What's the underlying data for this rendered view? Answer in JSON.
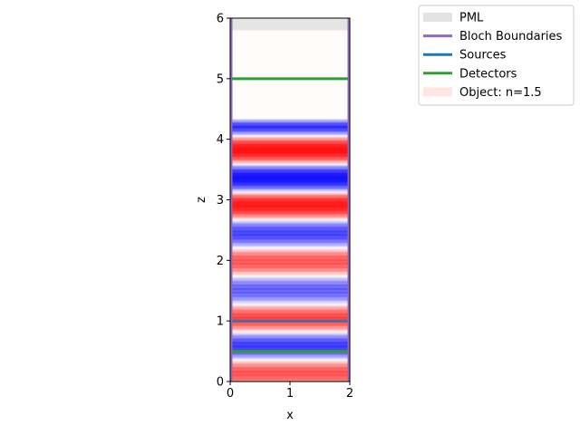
{
  "chart_data": {
    "type": "heatmap",
    "title": "",
    "xlabel": "x",
    "ylabel": "z",
    "xlim": [
      0,
      2
    ],
    "ylim": [
      0,
      6
    ],
    "x_ticks": [
      "0",
      "1",
      "2"
    ],
    "y_ticks": [
      "0",
      "1",
      "2",
      "3",
      "4",
      "5",
      "6"
    ],
    "grid": false,
    "legend_position": "top-right outside",
    "field": {
      "positive_color": "#ff0000",
      "negative_color": "#0000ff",
      "z_start": 0.0,
      "z_end": 4.35,
      "wave_period": 0.925,
      "wave_phase": 0.82,
      "amplitude_profile": [
        [
          0.0,
          0.55
        ],
        [
          0.5,
          0.75
        ],
        [
          1.0,
          0.7
        ],
        [
          1.5,
          0.55
        ],
        [
          2.0,
          0.6
        ],
        [
          2.5,
          0.7
        ],
        [
          3.0,
          1.0
        ],
        [
          3.5,
          1.0
        ],
        [
          4.0,
          1.0
        ],
        [
          4.2,
          1.0
        ],
        [
          4.35,
          0.0
        ]
      ]
    },
    "series": [
      {
        "name": "PML",
        "kind": "region",
        "color": "#d9d9d9",
        "z_range": [
          5.8,
          6.0
        ]
      },
      {
        "name": "Bloch Boundaries",
        "kind": "vertical-lines",
        "color": "#9467bd",
        "x_values": [
          0,
          2
        ]
      },
      {
        "name": "Sources",
        "kind": "horizontal-line",
        "color": "#1f77b4",
        "z_value": 1.0
      },
      {
        "name": "Detectors",
        "kind": "horizontal-line",
        "color": "#2ca02c",
        "z_values": [
          0.5,
          5.0
        ]
      },
      {
        "name": "Object: n=1.5",
        "kind": "region",
        "color": "#fde0dd",
        "z_range": [
          0,
          6
        ]
      }
    ],
    "legend": [
      "PML",
      "Bloch Boundaries",
      "Sources",
      "Detectors",
      "Object: n=1.5"
    ]
  }
}
